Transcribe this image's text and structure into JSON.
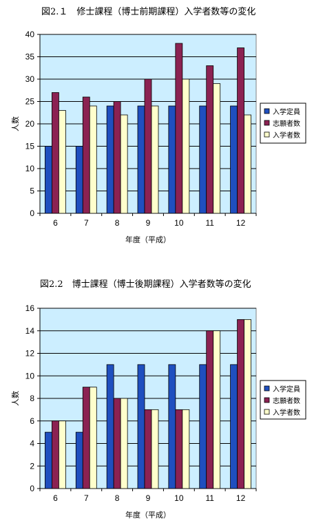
{
  "chart_data": [
    {
      "type": "bar",
      "title": "図2.１　修士課程（博士前期課程）入学者数等の変化",
      "xlabel": "年度（平成）",
      "ylabel": "人数",
      "categories": [
        "6",
        "7",
        "8",
        "9",
        "10",
        "11",
        "12"
      ],
      "series": [
        {
          "name": "入学定員",
          "color": "#1f4fbf",
          "values": [
            15,
            15,
            24,
            24,
            24,
            24,
            24
          ]
        },
        {
          "name": "志願者数",
          "color": "#8b2252",
          "values": [
            27,
            26,
            25,
            30,
            38,
            33,
            37
          ]
        },
        {
          "name": "入学者数",
          "color": "#ffffcc",
          "values": [
            23,
            24,
            22,
            24,
            30,
            29,
            22
          ]
        }
      ],
      "ylim": [
        0,
        40
      ],
      "yticks": [
        0,
        5,
        10,
        15,
        20,
        25,
        30,
        35,
        40
      ],
      "plot_background": "#cceeff",
      "grid": true,
      "legend": "right"
    },
    {
      "type": "bar",
      "title": "図2.2　博士課程（博士後期課程）入学者数等の変化",
      "xlabel": "年度（平成）",
      "ylabel": "人数",
      "categories": [
        "6",
        "7",
        "8",
        "9",
        "10",
        "11",
        "12"
      ],
      "series": [
        {
          "name": "入学定員",
          "color": "#1f4fbf",
          "values": [
            5,
            5,
            11,
            11,
            11,
            11,
            11
          ]
        },
        {
          "name": "志願者数",
          "color": "#8b2252",
          "values": [
            6,
            9,
            8,
            7,
            7,
            14,
            15
          ]
        },
        {
          "name": "入学者数",
          "color": "#ffffcc",
          "values": [
            6,
            9,
            8,
            7,
            7,
            14,
            15
          ]
        }
      ],
      "ylim": [
        0,
        16
      ],
      "yticks": [
        0,
        2,
        4,
        6,
        8,
        10,
        12,
        14,
        16
      ],
      "plot_background": "#cceeff",
      "grid": true,
      "legend": "right"
    }
  ]
}
